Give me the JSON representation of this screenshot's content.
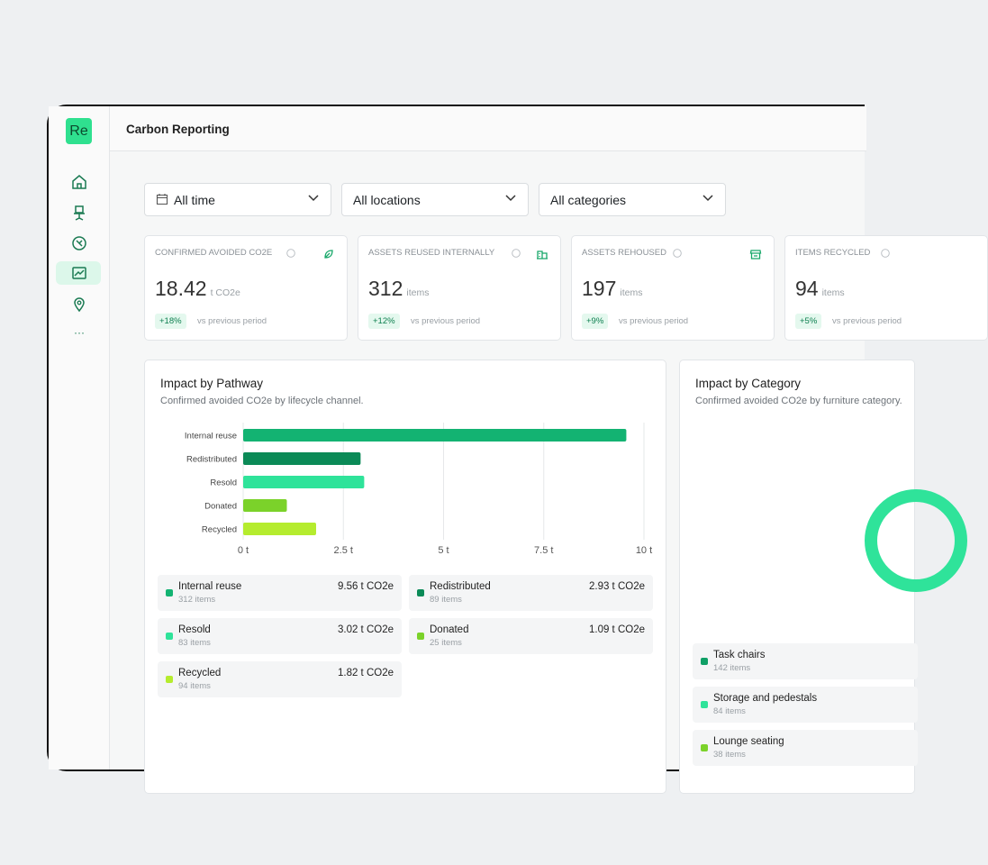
{
  "sidebar": {
    "logo": "Re",
    "more": "···"
  },
  "header": {
    "title": "Carbon Reporting"
  },
  "filters": [
    "All time",
    "All locations",
    "All categories"
  ],
  "kpis": [
    {
      "label": "CONFIRMED AVOIDED CO2E",
      "value": 18.42,
      "unit": "t CO2e",
      "change": "+18%",
      "note": "vs previous period"
    },
    {
      "label": "ASSETS REUSED INTERNALLY",
      "value": 312,
      "unit": "items",
      "change": "+12%",
      "note": "vs previous period"
    },
    {
      "label": "ASSETS REHOUSED",
      "value": 197,
      "unit": "items",
      "change": "+9%",
      "note": "vs previous period"
    },
    {
      "label": "ITEMS RECYCLED",
      "value": 94,
      "unit": "items",
      "change": "+5%",
      "note": "vs previous period"
    }
  ],
  "chart_data": {
    "type": "bar",
    "orientation": "horizontal",
    "title": "Impact by Pathway",
    "subtitle": "Confirmed avoided CO2e by lifecycle channel.",
    "categories": [
      "Internal reuse",
      "Redistributed",
      "Resold",
      "Donated",
      "Recycled"
    ],
    "values": [
      9.56,
      2.93,
      3.02,
      1.09,
      1.82
    ],
    "value_labels": [
      "9.56 t CO2e",
      "2.93 t CO2e",
      "3.02 t CO2e",
      "1.09 t CO2e",
      "1.82 t CO2e"
    ],
    "item_counts": [
      "312 items",
      "89 items",
      "83 items",
      "25 items",
      "94 items"
    ],
    "colors": [
      "#13b372",
      "#0b8a57",
      "#2fe39a",
      "#7bd22a",
      "#b5ec2e"
    ],
    "xlim": [
      0,
      10
    ],
    "xticks": [
      {
        "value": 0,
        "label": "0 t"
      },
      {
        "value": 2.5,
        "label": "2.5 t"
      },
      {
        "value": 5,
        "label": "5 t"
      },
      {
        "value": 7.5,
        "label": "7.5 t"
      },
      {
        "value": 10,
        "label": "10 t"
      }
    ],
    "grid": true
  },
  "category_panel": {
    "title": "Impact by Category",
    "subtitle": "Confirmed avoided CO2e by furniture category.",
    "items": [
      {
        "name": "Task chairs",
        "count": "142 items",
        "color": "#0f9f66"
      },
      {
        "name": "Storage and pedestals",
        "count": "84 items",
        "color": "#2fe39a"
      },
      {
        "name": "Lounge seating",
        "count": "38 items",
        "color": "#7bd22a"
      }
    ]
  }
}
